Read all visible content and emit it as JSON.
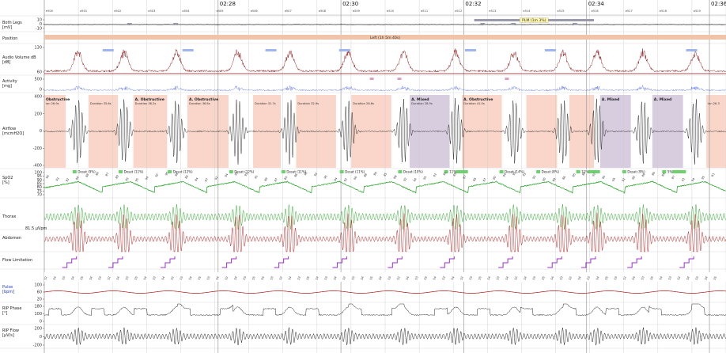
{
  "time_marks": [
    {
      "label": "02:28",
      "t": 2.83
    },
    {
      "label": "02:30",
      "t": 4.83
    },
    {
      "label": "02:32",
      "t": 6.83
    },
    {
      "label": "02:34",
      "t": 8.83
    },
    {
      "label": "02:36",
      "t": 10.83
    }
  ],
  "epochs": [
    "e500",
    "e501",
    "e502",
    "e503",
    "e504",
    "e505",
    "e506",
    "e507",
    "e508",
    "e509",
    "e510",
    "e511",
    "e512",
    "e513",
    "e514",
    "e515",
    "e516",
    "e517",
    "e518",
    "e519"
  ],
  "channels": {
    "legs": {
      "label": "Both Legs",
      "unit": "[mV]",
      "ticks": [
        "10",
        "0",
        "-10"
      ],
      "plm_label": "PLM (1m 3%)"
    },
    "position": {
      "label": "Position",
      "band_label": "Left (1h 5m 40s)"
    },
    "audio": {
      "label": "Audio Volume dB",
      "unit": "[dB]",
      "ticks": [
        "130",
        "60"
      ]
    },
    "activity": {
      "label": "Activity",
      "unit": "[mg]",
      "ticks": [
        "500",
        "0"
      ]
    },
    "airflow": {
      "label": "Airflow",
      "unit": "[mcmH2O]",
      "ticks": [
        "400",
        "200",
        "0",
        "-200",
        "-400"
      ]
    },
    "spo2": {
      "label": "SpO2",
      "unit": "[%]",
      "ticks": [
        "100",
        "95",
        "90",
        "85",
        "80",
        "75",
        "70"
      ]
    },
    "thorax": {
      "label": "Thorax",
      "scale": "81.5 µVpm"
    },
    "abdomen": {
      "label": "Abdomen"
    },
    "flowlim": {
      "label": "Flow Limitation"
    },
    "pulse": {
      "label": "Pulse",
      "unit": "[bpm]",
      "ticks": [
        "100",
        "60",
        "20"
      ]
    },
    "rip_phase": {
      "label": "RIP Phase",
      "unit": "[°]",
      "ticks": [
        "180",
        "100",
        "0"
      ]
    },
    "rip_flow": {
      "label": "RIP Flow",
      "unit": "[µV/s]",
      "ticks": [
        "200",
        "0",
        "-200"
      ]
    }
  },
  "events": [
    {
      "t0": 0.0,
      "t1": 0.35,
      "type": "obstructive",
      "name": "Obstructive",
      "dur": "ion 26.9s"
    },
    {
      "t0": 0.72,
      "t1": 1.2,
      "type": "obstructive",
      "name": "",
      "dur": "Duration 35.6s"
    },
    {
      "t0": 1.45,
      "t1": 2.0,
      "type": "obstructive",
      "name": "A. Obstructive",
      "dur": "Duration 36.2s"
    },
    {
      "t0": 2.33,
      "t1": 3.0,
      "type": "obstructive",
      "name": "A. Obstructive",
      "dur": "Duration 36.6s"
    },
    {
      "t0": 3.4,
      "t1": 3.85,
      "type": "obstructive",
      "name": "",
      "dur": "Duration 31.7s"
    },
    {
      "t0": 4.1,
      "t1": 4.75,
      "type": "obstructive",
      "name": "",
      "dur": "Duration 32.9s"
    },
    {
      "t0": 5.0,
      "t1": 5.65,
      "type": "obstructive",
      "name": "",
      "dur": "Duration 28.6s"
    },
    {
      "t0": 5.95,
      "t1": 6.6,
      "type": "mixed",
      "name": "A. Mixed",
      "dur": "Duration 28.9s"
    },
    {
      "t0": 6.8,
      "t1": 7.45,
      "type": "obstructive",
      "name": "A. Obstructive",
      "dur": "Duration 41.0s"
    },
    {
      "t0": 7.85,
      "t1": 8.35,
      "type": "obstructive",
      "name": "",
      "dur": ""
    },
    {
      "t0": 8.55,
      "t1": 8.95,
      "type": "obstructive",
      "name": "",
      "dur": ""
    },
    {
      "t0": 9.05,
      "t1": 9.55,
      "type": "mixed",
      "name": "A. Mixed",
      "dur": ""
    },
    {
      "t0": 9.9,
      "t1": 10.4,
      "type": "mixed",
      "name": "A. Mixed",
      "dur": ""
    },
    {
      "t0": 10.78,
      "t1": 11.1,
      "type": "obstructive",
      "name": "",
      "dur": "ion 26.3"
    }
  ],
  "desats": [
    {
      "t": 0.5,
      "label": "Desat (9%)"
    },
    {
      "t": 1.25,
      "label": "Desat (11%)"
    },
    {
      "t": 2.05,
      "label": "Desat (12%)"
    },
    {
      "t": 3.05,
      "label": "Desat (12%)"
    },
    {
      "t": 3.9,
      "label": "Desat (11%)"
    },
    {
      "t": 4.85,
      "label": "Desat (11%)"
    },
    {
      "t": 5.8,
      "label": "Desat (10%)"
    },
    {
      "t": 6.55,
      "label": "11%"
    },
    {
      "t": 7.45,
      "label": "Desat (14%)"
    },
    {
      "t": 8.05,
      "label": "Desat (8%)"
    },
    {
      "t": 8.7,
      "label": "11%"
    },
    {
      "t": 9.45,
      "label": "Desat (9%)"
    },
    {
      "t": 10.1,
      "label": "5%"
    }
  ],
  "pulse_values": [
    "52",
    "54",
    "53",
    "54",
    "55",
    "54",
    "53",
    "52",
    "54",
    "53",
    "55",
    "54",
    "53",
    "54",
    "52",
    "53",
    "54",
    "55",
    "53",
    "54",
    "52",
    "54",
    "53",
    "55",
    "54",
    "53",
    "52",
    "54",
    "53",
    "55",
    "54",
    "53",
    "54",
    "52",
    "53",
    "54",
    "55",
    "54",
    "53",
    "52",
    "54",
    "53",
    "55",
    "54",
    "53",
    "54",
    "52",
    "53",
    "55",
    "54",
    "53",
    "54",
    "52",
    "54",
    "53",
    "55",
    "54",
    "53",
    "52",
    "54",
    "53",
    "54",
    "55",
    "53",
    "52",
    "54",
    "53",
    "55",
    "54",
    "53",
    "52",
    "54",
    "53",
    "54",
    "55"
  ],
  "spo2_values": [
    "94",
    "93",
    "92",
    "90",
    "88",
    "86",
    "87",
    "89",
    "93",
    "95",
    "94",
    "92",
    "90",
    "88",
    "86",
    "84",
    "87",
    "91",
    "94",
    "95",
    "93",
    "91",
    "89",
    "87",
    "85",
    "86",
    "90",
    "93",
    "95",
    "94",
    "92",
    "90",
    "88",
    "86",
    "85",
    "88",
    "92",
    "94",
    "95",
    "93",
    "91",
    "89",
    "87",
    "85",
    "87",
    "90",
    "94",
    "95",
    "93",
    "92",
    "90",
    "88",
    "86",
    "85",
    "88",
    "92",
    "95",
    "94",
    "92",
    "90",
    "88",
    "86",
    "84",
    "87",
    "91",
    "94",
    "95",
    "93"
  ],
  "colors": {
    "obstructive": "#f9d6c9",
    "mixed": "#d8ccdf",
    "audio": "#8b1a1a",
    "thorax": "#22a222",
    "abdomen": "#b01515",
    "activity": "#3a55e0",
    "flow_limit": "#9b30c8",
    "position": "#efc4a8",
    "plm": "#9a9aaa",
    "desat": "#6cd36c",
    "grid": "#c9c9c9"
  }
}
